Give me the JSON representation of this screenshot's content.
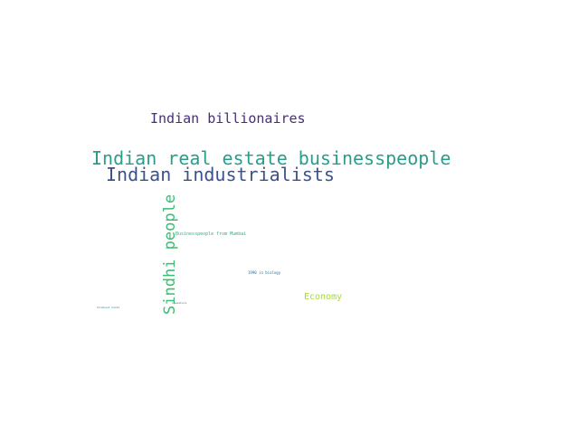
{
  "words": [
    {
      "text": "Indian billionaires",
      "color": "#472d7b"
    },
    {
      "text": "Indian real estate businesspeople",
      "color": "#2a9d8a"
    },
    {
      "text": "Indian industrialists",
      "color": "#3b528b"
    },
    {
      "text": "Sindhi people",
      "color": "#3dbc74"
    },
    {
      "text": "Businesspeople from Mumbai",
      "color": "#2fb47c"
    },
    {
      "text": "1990 in biology",
      "color": "#2c728e"
    },
    {
      "text": "Economy",
      "color": "#a5db36"
    },
    {
      "text": "investors",
      "color": "#31688e"
    },
    {
      "text": "Sindhust hosts",
      "color": "#26828e"
    }
  ]
}
